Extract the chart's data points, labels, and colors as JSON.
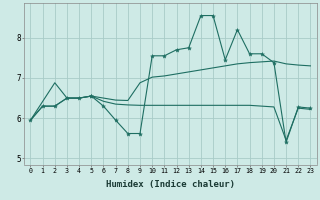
{
  "xlabel": "Humidex (Indice chaleur)",
  "background_color": "#ceeae6",
  "grid_color": "#a8ccc8",
  "line_color": "#1e6e62",
  "xlim": [
    -0.5,
    23.5
  ],
  "ylim": [
    4.85,
    8.85
  ],
  "yticks": [
    5,
    6,
    7,
    8
  ],
  "xticks": [
    0,
    1,
    2,
    3,
    4,
    5,
    6,
    7,
    8,
    9,
    10,
    11,
    12,
    13,
    14,
    15,
    16,
    17,
    18,
    19,
    20,
    21,
    22,
    23
  ],
  "line1_x": [
    0,
    1,
    2,
    3,
    4,
    5,
    5,
    6,
    7,
    8,
    9,
    10,
    11,
    12,
    13,
    14,
    15,
    16,
    17,
    18,
    19,
    20,
    21,
    22,
    23
  ],
  "line1_y": [
    5.95,
    6.3,
    6.3,
    6.5,
    6.5,
    6.55,
    6.55,
    6.3,
    5.95,
    5.62,
    5.62,
    7.55,
    7.55,
    7.7,
    7.75,
    8.55,
    8.55,
    7.45,
    8.2,
    7.6,
    7.6,
    7.38,
    5.4,
    6.28,
    6.25
  ],
  "line2_x": [
    0,
    2,
    3,
    4,
    5,
    6,
    7,
    8,
    9,
    10,
    11,
    12,
    13,
    14,
    15,
    16,
    17,
    18,
    19,
    20,
    21,
    22,
    23
  ],
  "line2_y": [
    5.95,
    6.88,
    6.5,
    6.5,
    6.55,
    6.5,
    6.45,
    6.44,
    6.88,
    7.02,
    7.05,
    7.1,
    7.15,
    7.2,
    7.25,
    7.3,
    7.35,
    7.38,
    7.4,
    7.42,
    7.35,
    7.32,
    7.3
  ],
  "line3_x": [
    0,
    1,
    2,
    3,
    4,
    5,
    6,
    7,
    8,
    9,
    10,
    11,
    12,
    13,
    14,
    15,
    16,
    17,
    18,
    19,
    20,
    21,
    22,
    23
  ],
  "line3_y": [
    5.95,
    6.3,
    6.3,
    6.5,
    6.5,
    6.55,
    6.42,
    6.35,
    6.33,
    6.32,
    6.32,
    6.32,
    6.32,
    6.32,
    6.32,
    6.32,
    6.32,
    6.32,
    6.32,
    6.3,
    6.28,
    5.45,
    6.25,
    6.22
  ]
}
